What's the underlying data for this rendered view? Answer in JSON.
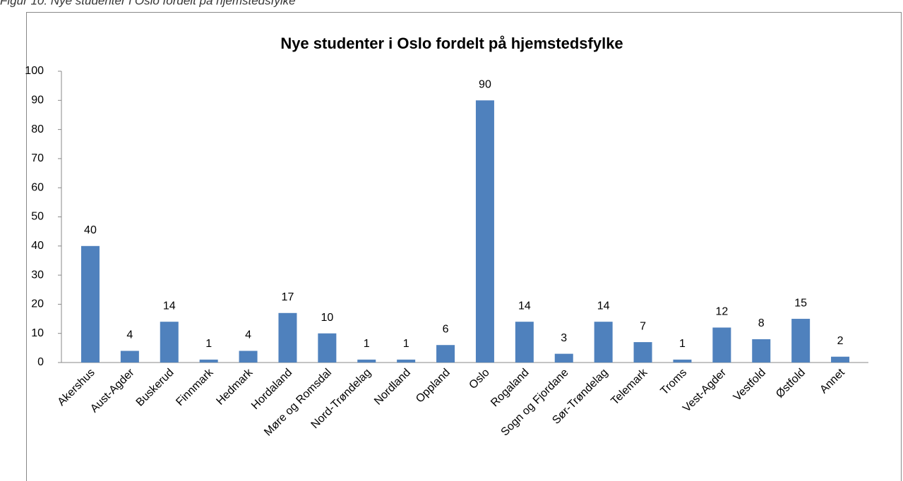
{
  "caption": "Figur 10: Nye studenter i Oslo fordelt på hjemstedsfylke",
  "chart_data": {
    "type": "bar",
    "title": "Nye studenter i Oslo fordelt på hjemstedsfylke",
    "categories": [
      "Akershus",
      "Aust-Agder",
      "Buskerud",
      "Finnmark",
      "Hedmark",
      "Hordaland",
      "Møre og Romsdal",
      "Nord-Trøndelag",
      "Nordland",
      "Oppland",
      "Oslo",
      "Rogaland",
      "Sogn og Fjordane",
      "Sør-Trøndelag",
      "Telemark",
      "Troms",
      "Vest-Agder",
      "Vestfold",
      "Østfold",
      "Annet"
    ],
    "values": [
      40,
      4,
      14,
      1,
      4,
      17,
      10,
      1,
      1,
      6,
      90,
      14,
      3,
      14,
      7,
      1,
      12,
      8,
      15,
      2
    ],
    "color": "#4f81bd",
    "ylim": [
      0,
      100
    ],
    "yticks": [
      0,
      10,
      20,
      30,
      40,
      50,
      60,
      70,
      80,
      90,
      100
    ],
    "grid": false
  }
}
